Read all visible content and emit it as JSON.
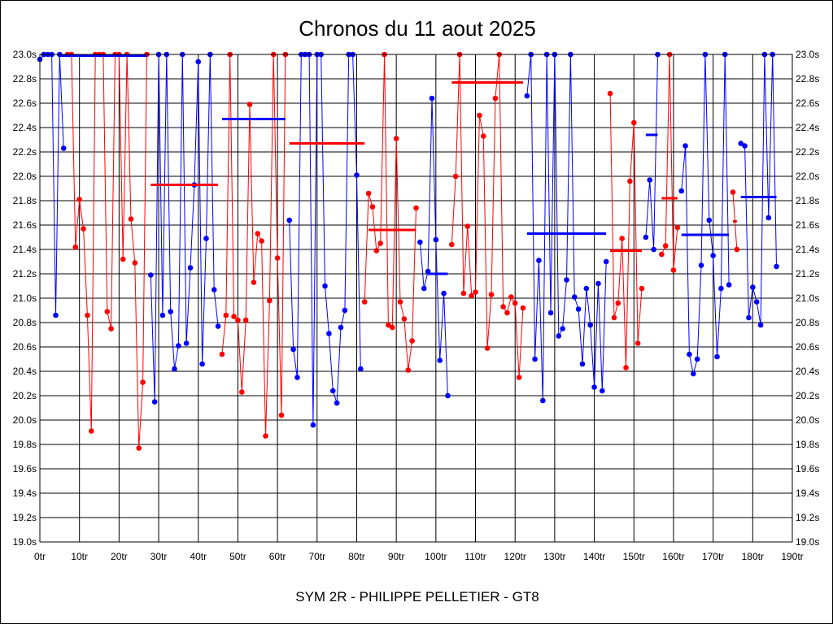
{
  "chart_data": {
    "type": "line",
    "title": "Chronos du 11 aout 2025",
    "subtitle": "SYM 2R - PHILIPPE PELLETIER - GT8",
    "xlabel": "",
    "ylabel": "",
    "xlim": [
      0,
      190
    ],
    "ylim": [
      19.0,
      23.0
    ],
    "x_ticks": [
      0,
      10,
      20,
      30,
      40,
      50,
      60,
      70,
      80,
      90,
      100,
      110,
      120,
      130,
      140,
      150,
      160,
      170,
      180,
      190
    ],
    "x_tick_labels": [
      "0tr",
      "10tr",
      "20tr",
      "30tr",
      "40tr",
      "50tr",
      "60tr",
      "70tr",
      "80tr",
      "90tr",
      "100tr",
      "110tr",
      "120tr",
      "130tr",
      "140tr",
      "150tr",
      "160tr",
      "170tr",
      "180tr",
      "190tr"
    ],
    "y_ticks": [
      19.0,
      19.2,
      19.4,
      19.6,
      19.8,
      20.0,
      20.2,
      20.4,
      20.6,
      20.8,
      21.0,
      21.2,
      21.4,
      21.6,
      21.8,
      22.0,
      22.2,
      22.4,
      22.6,
      22.8,
      23.0
    ],
    "y_tick_labels": [
      "19.0s",
      "19.2s",
      "19.4s",
      "19.6s",
      "19.8s",
      "20.0s",
      "20.2s",
      "20.4s",
      "20.6s",
      "20.8s",
      "21.0s",
      "21.2s",
      "21.4s",
      "21.6s",
      "21.8s",
      "22.0s",
      "22.2s",
      "22.4s",
      "22.6s",
      "22.8s",
      "23.0s"
    ],
    "grid": true,
    "colors": {
      "blue": "#0000ff",
      "red": "#ff0000",
      "grid": "#000000"
    },
    "series": [
      {
        "name": "s1",
        "color": "blue",
        "x": [
          0,
          1,
          2,
          3,
          4,
          5,
          6
        ],
        "y": [
          22.96,
          23.0,
          23.0,
          23.0,
          20.86,
          23.0,
          22.23
        ],
        "avg": 22.99,
        "avg_range": [
          5,
          27
        ]
      },
      {
        "name": "s2",
        "color": "red",
        "x": [
          7,
          8,
          9,
          10,
          11,
          12,
          13,
          14,
          15,
          16,
          17,
          18,
          19,
          20,
          21,
          22,
          23,
          24,
          25,
          26,
          27
        ],
        "y": [
          23.0,
          23.0,
          21.42,
          21.81,
          21.57,
          20.86,
          19.91,
          23.0,
          23.0,
          23.0,
          20.89,
          20.75,
          23.0,
          23.0,
          21.32,
          23.0,
          21.65,
          21.29,
          19.77,
          20.31,
          23.0
        ],
        "avg": 21.93,
        "avg_range": [
          28,
          45
        ]
      },
      {
        "name": "s3",
        "color": "blue",
        "x": [
          28,
          29,
          30,
          31,
          32,
          33,
          34,
          35,
          36,
          37,
          38,
          39,
          40,
          41,
          42,
          43,
          44,
          45
        ],
        "y": [
          21.19,
          20.15,
          23.0,
          20.86,
          23.0,
          20.89,
          20.42,
          20.61,
          23.0,
          20.63,
          21.25,
          21.93,
          22.94,
          20.46,
          21.49,
          23.0,
          21.07,
          20.77
        ],
        "avg": 22.47,
        "avg_range": [
          46,
          62
        ]
      },
      {
        "name": "s4",
        "color": "red",
        "x": [
          46,
          47,
          48,
          49,
          50,
          51,
          52,
          53,
          54,
          55,
          56,
          57,
          58,
          59,
          60,
          61,
          62
        ],
        "y": [
          20.54,
          20.86,
          23.0,
          20.85,
          20.82,
          20.23,
          20.82,
          22.59,
          21.13,
          21.53,
          21.47,
          19.87,
          20.98,
          23.0,
          21.33,
          20.04,
          23.0
        ],
        "avg": 22.27,
        "avg_range": [
          63,
          82
        ]
      },
      {
        "name": "s5",
        "color": "blue",
        "x": [
          63,
          64,
          65,
          66,
          67,
          68,
          69,
          70,
          71,
          72,
          73,
          74,
          75,
          76,
          77,
          78,
          79,
          80,
          81
        ],
        "y": [
          21.64,
          20.58,
          20.35,
          23.0,
          23.0,
          23.0,
          19.96,
          23.0,
          23.0,
          21.1,
          20.71,
          20.24,
          20.14,
          20.76,
          20.9,
          23.0,
          23.0,
          22.01,
          20.42
        ],
        "avg": null,
        "avg_range": null
      },
      {
        "name": "s6",
        "color": "red",
        "x": [
          82,
          83,
          84,
          85,
          86,
          87,
          88,
          89,
          90,
          91,
          92,
          93,
          94,
          95
        ],
        "y": [
          20.97,
          21.86,
          21.75,
          21.39,
          21.45,
          23.0,
          20.78,
          20.76,
          22.31,
          20.97,
          20.83,
          20.41,
          20.65,
          21.74
        ],
        "avg": 21.56,
        "avg_range": [
          83,
          95
        ]
      },
      {
        "name": "s7",
        "color": "blue",
        "x": [
          96,
          97,
          98,
          99,
          100,
          101,
          102,
          103
        ],
        "y": [
          21.46,
          21.08,
          21.22,
          22.64,
          21.48,
          20.49,
          21.04,
          20.2
        ],
        "avg": 21.2,
        "avg_range": [
          98,
          103
        ]
      },
      {
        "name": "s8",
        "color": "red",
        "x": [
          104,
          105,
          106,
          107,
          108,
          109,
          110,
          111,
          112,
          113,
          114,
          115,
          116,
          117,
          118,
          119,
          120,
          121,
          122
        ],
        "y": [
          21.44,
          22.0,
          23.0,
          21.04,
          21.59,
          21.02,
          21.05,
          22.5,
          22.33,
          20.59,
          21.03,
          22.64,
          23.0,
          20.93,
          20.88,
          21.01,
          20.96,
          20.35,
          20.92
        ],
        "avg": 22.77,
        "avg_range": [
          104,
          122
        ]
      },
      {
        "name": "s9",
        "color": "blue",
        "x": [
          123,
          124,
          125,
          126,
          127,
          128,
          129,
          130,
          131,
          132,
          133,
          134,
          135,
          136,
          137,
          138,
          139,
          140,
          141,
          142,
          143
        ],
        "y": [
          22.66,
          23.0,
          20.5,
          21.31,
          20.16,
          23.0,
          20.88,
          23.0,
          20.69,
          20.75,
          21.15,
          23.0,
          21.01,
          20.91,
          20.46,
          21.08,
          20.78,
          20.27,
          21.12,
          20.24,
          21.3
        ],
        "avg": 21.53,
        "avg_range": [
          123,
          143
        ]
      },
      {
        "name": "s10",
        "color": "red",
        "x": [
          144,
          145,
          146,
          147,
          148,
          149,
          150,
          151,
          152
        ],
        "y": [
          22.68,
          20.84,
          20.96,
          21.49,
          20.43,
          21.96,
          22.44,
          20.63,
          21.08
        ],
        "avg": 21.39,
        "avg_range": [
          144,
          152
        ]
      },
      {
        "name": "s11",
        "color": "blue",
        "x": [
          153,
          154,
          155,
          156
        ],
        "y": [
          21.5,
          21.97,
          21.4,
          23.0
        ],
        "avg": 22.34,
        "avg_range": [
          153,
          156
        ]
      },
      {
        "name": "s12",
        "color": "red",
        "x": [
          157,
          158,
          159,
          160,
          161
        ],
        "y": [
          21.36,
          21.43,
          23.0,
          21.23,
          21.58
        ],
        "avg": 21.82,
        "avg_range": [
          157,
          161
        ]
      },
      {
        "name": "s13",
        "color": "blue",
        "x": [
          162,
          163,
          164,
          165,
          166,
          167,
          168,
          169,
          170,
          171,
          172,
          173,
          174
        ],
        "y": [
          21.88,
          22.25,
          20.54,
          20.38,
          20.5,
          21.27,
          23.0,
          21.64,
          21.35,
          20.52,
          21.08,
          23.0,
          21.11
        ],
        "avg": 21.52,
        "avg_range": [
          162,
          174
        ]
      },
      {
        "name": "s14",
        "color": "red",
        "x": [
          175,
          176
        ],
        "y": [
          21.87,
          21.4
        ],
        "avg": 21.63,
        "avg_range": [
          175,
          176
        ]
      },
      {
        "name": "s15",
        "color": "blue",
        "x": [
          177,
          178,
          179,
          180,
          181,
          182,
          183,
          184,
          185,
          186
        ],
        "y": [
          22.27,
          22.25,
          20.84,
          21.09,
          20.97,
          20.78,
          23.0,
          21.66,
          23.0,
          21.26
        ],
        "avg": 21.83,
        "avg_range": [
          177,
          186
        ]
      }
    ]
  }
}
